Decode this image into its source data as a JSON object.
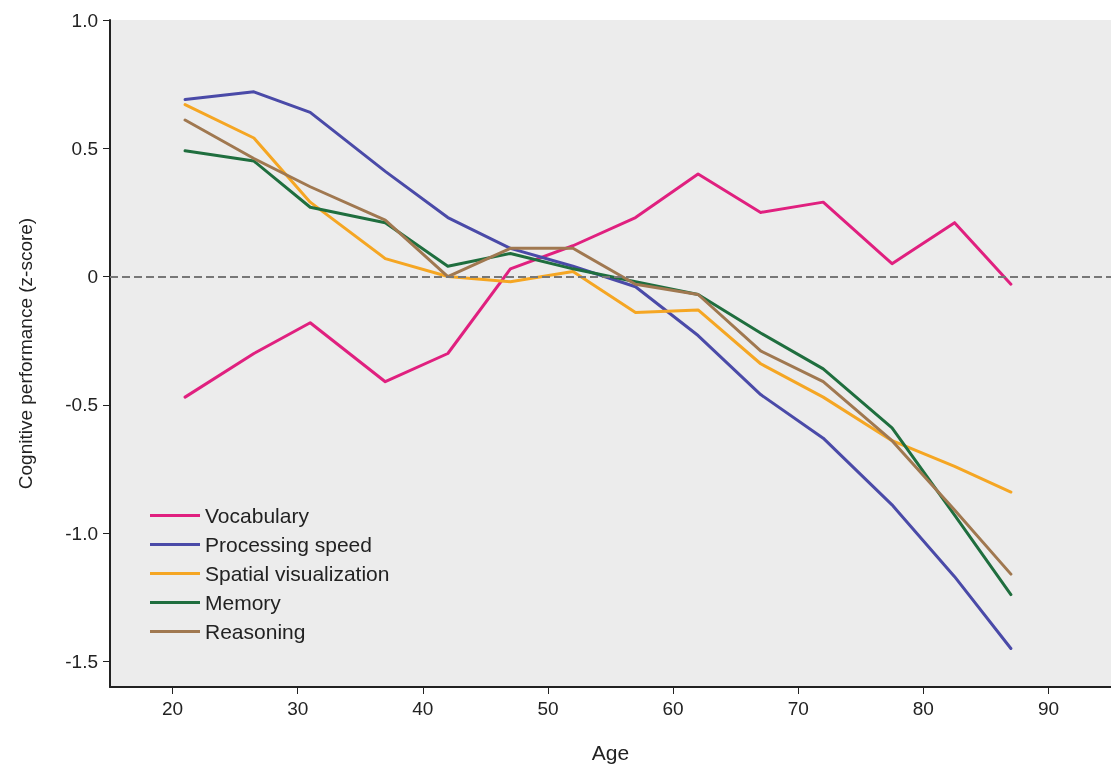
{
  "chart_data": {
    "type": "line",
    "xlabel": "Age",
    "ylabel": "Cognitive performance (z-score)",
    "x": [
      21,
      26.5,
      31,
      37,
      42,
      47,
      52,
      57,
      62,
      67,
      72,
      77.5,
      82.5,
      87
    ],
    "series": [
      {
        "name": "Vocabulary",
        "color": "#e0207f",
        "values": [
          -0.47,
          -0.3,
          -0.18,
          -0.41,
          -0.3,
          0.03,
          0.12,
          0.23,
          0.4,
          0.25,
          0.29,
          0.05,
          0.21,
          -0.03
        ]
      },
      {
        "name": "Processing speed",
        "color": "#4a4aa8",
        "values": [
          0.69,
          0.72,
          0.64,
          0.41,
          0.23,
          0.11,
          0.04,
          -0.04,
          -0.23,
          -0.46,
          -0.63,
          -0.89,
          -1.17,
          -1.45
        ]
      },
      {
        "name": "Spatial visualization",
        "color": "#f5a623",
        "values": [
          0.67,
          0.54,
          0.29,
          0.07,
          0.0,
          -0.02,
          0.02,
          -0.14,
          -0.13,
          -0.34,
          -0.47,
          -0.64,
          -0.74,
          -0.84
        ]
      },
      {
        "name": "Memory",
        "color": "#1f6e3e",
        "values": [
          0.49,
          0.45,
          0.27,
          0.21,
          0.04,
          0.09,
          0.03,
          -0.02,
          -0.07,
          -0.22,
          -0.36,
          -0.59,
          -0.93,
          -1.24
        ]
      },
      {
        "name": "Reasoning",
        "color": "#a07850",
        "values": [
          0.61,
          0.46,
          0.35,
          0.22,
          0.0,
          0.11,
          0.11,
          -0.03,
          -0.07,
          -0.29,
          -0.41,
          -0.64,
          -0.91,
          -1.16
        ]
      }
    ],
    "xlim": [
      15,
      95
    ],
    "xticks": [
      20,
      30,
      40,
      50,
      60,
      70,
      80,
      90
    ],
    "ylim": [
      -1.6,
      1.0
    ],
    "yticks": [
      {
        "value": 1.0,
        "label": "1.0"
      },
      {
        "value": 0.5,
        "label": "0.5"
      },
      0,
      {
        "value": -0.5,
        "label": "-0.5"
      },
      {
        "value": -1.0,
        "label": "-1.0"
      },
      {
        "value": -1.5,
        "label": "-1.5"
      }
    ],
    "ref_lines": [
      {
        "axis": "y",
        "value": 0,
        "color": "#777777",
        "line_style": "dashed"
      }
    ],
    "grid": false,
    "legend": "bottom left",
    "marker": "none",
    "line_style": "solid"
  }
}
